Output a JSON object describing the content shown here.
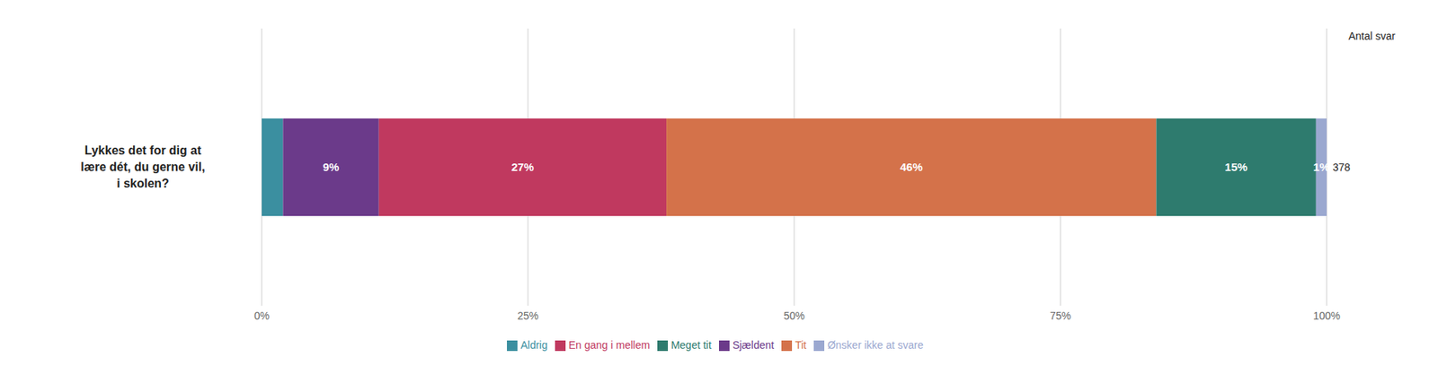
{
  "chart_data": {
    "type": "bar",
    "orientation": "horizontal",
    "stacked": true,
    "data_labels": true,
    "grid": true,
    "legend": "bottom",
    "categories": [
      "Lykkes det for dig at\nlære dét, du gerne vil,\ni skolen?"
    ],
    "series": [
      {
        "name": "Aldrig",
        "color": "#3b8fa0",
        "values": [
          2
        ],
        "value_labels": [
          null
        ]
      },
      {
        "name": "Sjældent",
        "color": "#6b3a8a",
        "values": [
          9
        ],
        "value_labels": [
          "9%"
        ]
      },
      {
        "name": "En gang i mellem",
        "color": "#c0395f",
        "values": [
          27
        ],
        "value_labels": [
          "27%"
        ]
      },
      {
        "name": "Tit",
        "color": "#d4724a",
        "values": [
          46
        ],
        "value_labels": [
          "46%"
        ]
      },
      {
        "name": "Meget tit",
        "color": "#2e7b6e",
        "values": [
          15
        ],
        "value_labels": [
          "15%"
        ]
      },
      {
        "name": "Ønsker ikke at svare",
        "color": "#9ba8d0",
        "values": [
          1
        ],
        "value_labels": [
          "1%"
        ]
      }
    ],
    "xlim": [
      0,
      100
    ],
    "xticks": [
      {
        "value": 0,
        "label": "0%"
      },
      {
        "value": 25,
        "label": "25%"
      },
      {
        "value": 50,
        "label": "50%"
      },
      {
        "value": 75,
        "label": "75%"
      },
      {
        "value": 100,
        "label": "100%"
      }
    ],
    "annotations": [
      "Antal svar",
      "378"
    ]
  }
}
